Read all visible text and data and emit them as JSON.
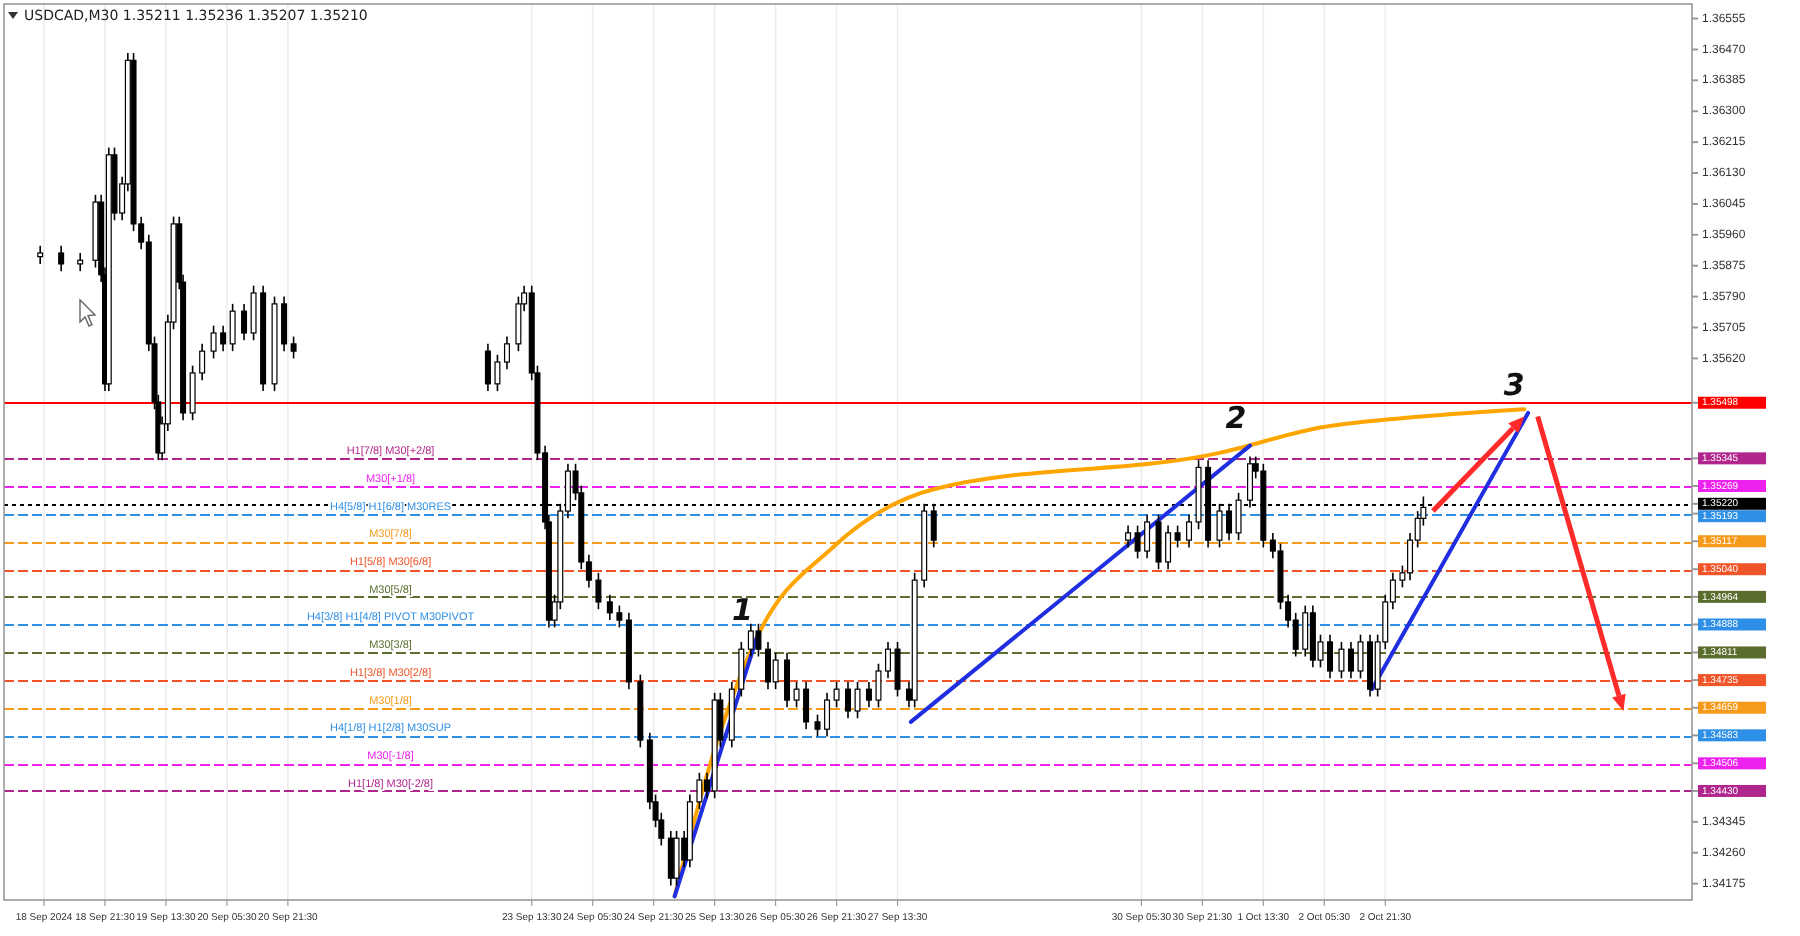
{
  "chart_data": {
    "type": "candlestick",
    "title": "USDCAD,M30  1.35211 1.35236 1.35207 1.35210",
    "color": "#000000",
    "grid": "x",
    "xlim": [
      "2024-09-17T19:00",
      "2024-10-06T06:00"
    ],
    "ylim": [
      1.3413,
      1.36595
    ],
    "xticks": [
      {
        "value": "2024-09-18T05:30",
        "label": "18 Sep 2024"
      },
      {
        "value": "2024-09-18T21:30",
        "label": "18 Sep 21:30"
      },
      {
        "value": "2024-09-19T13:30",
        "label": "19 Sep 13:30"
      },
      {
        "value": "2024-09-20T05:30",
        "label": "20 Sep 05:30"
      },
      {
        "value": "2024-09-20T21:30",
        "label": "20 Sep 21:30"
      },
      {
        "value": "2024-09-23T13:30",
        "label": "23 Sep 13:30"
      },
      {
        "value": "2024-09-24T05:30",
        "label": "24 Sep 05:30"
      },
      {
        "value": "2024-09-24T21:30",
        "label": "24 Sep 21:30"
      },
      {
        "value": "2024-09-25T13:30",
        "label": "25 Sep 13:30"
      },
      {
        "value": "2024-09-26T05:30",
        "label": "26 Sep 05:30"
      },
      {
        "value": "2024-09-26T21:30",
        "label": "26 Sep 21:30"
      },
      {
        "value": "2024-09-27T13:30",
        "label": "27 Sep 13:30"
      },
      {
        "value": "2024-09-30T05:30",
        "label": "30 Sep 05:30"
      },
      {
        "value": "2024-09-30T21:30",
        "label": "30 Sep 21:30"
      },
      {
        "value": "2024-10-01T13:30",
        "label": "1 Oct 13:30"
      },
      {
        "value": "2024-10-02T05:30",
        "label": "2 Oct 05:30"
      },
      {
        "value": "2024-10-02T21:30",
        "label": "2 Oct 21:30"
      }
    ],
    "yticks": [
      {
        "value": 1.36555,
        "label": "1.36555"
      },
      {
        "value": 1.3647,
        "label": "1.36470"
      },
      {
        "value": 1.36385,
        "label": "1.36385"
      },
      {
        "value": 1.363,
        "label": "1.36300"
      },
      {
        "value": 1.36215,
        "label": "1.36215"
      },
      {
        "value": 1.3613,
        "label": "1.36130"
      },
      {
        "value": 1.36045,
        "label": "1.36045"
      },
      {
        "value": 1.3596,
        "label": "1.35960"
      },
      {
        "value": 1.35875,
        "label": "1.35875"
      },
      {
        "value": 1.3579,
        "label": "1.35790"
      },
      {
        "value": 1.35705,
        "label": "1.35705"
      },
      {
        "value": 1.3562,
        "label": "1.35620"
      },
      {
        "value": 1.35498,
        "label": "1.35498"
      },
      {
        "value": 1.35345,
        "label": "1.35345"
      },
      {
        "value": 1.35269,
        "label": "1.35269"
      },
      {
        "value": 1.3522,
        "label": "1.35220"
      },
      {
        "value": 1.35193,
        "label": "1.35193"
      },
      {
        "value": 1.35117,
        "label": "1.35117"
      },
      {
        "value": 1.3504,
        "label": "1.35040"
      },
      {
        "value": 1.34964,
        "label": "1.34964"
      },
      {
        "value": 1.34888,
        "label": "1.34888"
      },
      {
        "value": 1.34811,
        "label": "1.34811"
      },
      {
        "value": 1.34735,
        "label": "1.34735"
      },
      {
        "value": 1.34659,
        "label": "1.34659"
      },
      {
        "value": 1.34583,
        "label": "1.34583"
      },
      {
        "value": 1.34506,
        "label": "1.34506"
      },
      {
        "value": 1.3443,
        "label": "1.34430"
      },
      {
        "value": 1.34345,
        "label": "1.34345"
      },
      {
        "value": 1.3426,
        "label": "1.34260"
      },
      {
        "value": 1.34175,
        "label": "1.34175"
      }
    ],
    "x": [
      "2024-09-18T04:30",
      "2024-09-18T10:00",
      "2024-09-18T15:00",
      "2024-09-18T19:00",
      "2024-09-18T20:30",
      "2024-09-18T21:30",
      "2024-09-18T22:30",
      "2024-09-19T00:00",
      "2024-09-19T02:00",
      "2024-09-19T03:30",
      "2024-09-19T05:00",
      "2024-09-19T07:00",
      "2024-09-19T09:00",
      "2024-09-19T10:30",
      "2024-09-19T11:30",
      "2024-09-19T12:30",
      "2024-09-19T14:00",
      "2024-09-19T15:30",
      "2024-09-19T17:00",
      "2024-09-19T18:00",
      "2024-09-19T20:30",
      "2024-09-19T23:00",
      "2024-09-20T02:00",
      "2024-09-20T04:30",
      "2024-09-20T07:00",
      "2024-09-20T10:00",
      "2024-09-20T12:30",
      "2024-09-20T15:00",
      "2024-09-20T18:00",
      "2024-09-20T20:30",
      "2024-09-20T23:00",
      "2024-09-23T02:00",
      "2024-09-23T04:30",
      "2024-09-23T07:00",
      "2024-09-23T10:00",
      "2024-09-23T11:30",
      "2024-09-23T13:30",
      "2024-09-23T15:00",
      "2024-09-23T17:00",
      "2024-09-23T18:00",
      "2024-09-23T19:30",
      "2024-09-23T21:00",
      "2024-09-23T23:00",
      "2024-09-24T01:00",
      "2024-09-24T02:30",
      "2024-09-24T04:30",
      "2024-09-24T07:00",
      "2024-09-24T10:00",
      "2024-09-24T12:30",
      "2024-09-24T15:00",
      "2024-09-24T18:00",
      "2024-09-24T20:30",
      "2024-09-24T22:00",
      "2024-09-24T23:30",
      "2024-09-25T02:00",
      "2024-09-25T03:30",
      "2024-09-25T05:30",
      "2024-09-25T07:00",
      "2024-09-25T09:30",
      "2024-09-25T11:30",
      "2024-09-25T13:30",
      "2024-09-25T15:00",
      "2024-09-25T18:00",
      "2024-09-25T20:30",
      "2024-09-25T23:00",
      "2024-09-26T01:00",
      "2024-09-26T03:30",
      "2024-09-26T05:30",
      "2024-09-26T08:30",
      "2024-09-26T11:00",
      "2024-09-26T13:30",
      "2024-09-26T16:30",
      "2024-09-26T19:00",
      "2024-09-26T21:30",
      "2024-09-27T00:30",
      "2024-09-27T03:00",
      "2024-09-27T06:00",
      "2024-09-27T08:30",
      "2024-09-27T11:00",
      "2024-09-27T13:30",
      "2024-09-27T16:30",
      "2024-09-27T18:00",
      "2024-09-27T20:30",
      "2024-09-27T23:00",
      "2024-09-30T02:00",
      "2024-09-30T04:30",
      "2024-09-30T07:00",
      "2024-09-30T10:00",
      "2024-09-30T12:30",
      "2024-09-30T15:00",
      "2024-09-30T18:00",
      "2024-09-30T20:30",
      "2024-09-30T23:00",
      "2024-10-01T02:00",
      "2024-10-01T04:30",
      "2024-10-01T07:00",
      "2024-10-01T10:00",
      "2024-10-01T11:30",
      "2024-10-01T13:30",
      "2024-10-01T16:00",
      "2024-10-01T18:00",
      "2024-10-01T20:00",
      "2024-10-01T22:00",
      "2024-10-02T00:30",
      "2024-10-02T02:30",
      "2024-10-02T04:30",
      "2024-10-02T07:00",
      "2024-10-02T10:00",
      "2024-10-02T12:30",
      "2024-10-02T15:00",
      "2024-10-02T17:30",
      "2024-10-02T19:30",
      "2024-10-02T21:30",
      "2024-10-02T23:30",
      "2024-10-03T02:00",
      "2024-10-03T04:00",
      "2024-10-03T06:00",
      "2024-10-03T07:30"
    ],
    "ohlc": [
      [
        1.359,
        1.3593,
        1.3588,
        1.3591
      ],
      [
        1.3591,
        1.3593,
        1.3586,
        1.3588
      ],
      [
        1.3588,
        1.3591,
        1.3586,
        1.3589
      ],
      [
        1.3589,
        1.3607,
        1.3587,
        1.3605
      ],
      [
        1.3605,
        1.3607,
        1.3583,
        1.3585
      ],
      [
        1.3585,
        1.3587,
        1.3553,
        1.3555
      ],
      [
        1.3555,
        1.362,
        1.3553,
        1.3618
      ],
      [
        1.3618,
        1.362,
        1.36,
        1.3602
      ],
      [
        1.3602,
        1.3612,
        1.36,
        1.361
      ],
      [
        1.361,
        1.3646,
        1.3608,
        1.3644
      ],
      [
        1.3644,
        1.3646,
        1.3597,
        1.3599
      ],
      [
        1.3599,
        1.3601,
        1.3592,
        1.3594
      ],
      [
        1.3594,
        1.3596,
        1.3564,
        1.3566
      ],
      [
        1.3566,
        1.3568,
        1.3548,
        1.355
      ],
      [
        1.355,
        1.3552,
        1.3534,
        1.3536
      ],
      [
        1.3536,
        1.3546,
        1.3534,
        1.3544
      ],
      [
        1.3544,
        1.3574,
        1.3542,
        1.3572
      ],
      [
        1.3572,
        1.3601,
        1.357,
        1.3599
      ],
      [
        1.3599,
        1.3601,
        1.3581,
        1.3583
      ],
      [
        1.3583,
        1.3585,
        1.3545,
        1.3547
      ],
      [
        1.3547,
        1.356,
        1.3545,
        1.3558
      ],
      [
        1.3558,
        1.3566,
        1.3556,
        1.3564
      ],
      [
        1.3564,
        1.3571,
        1.3562,
        1.3569
      ],
      [
        1.3569,
        1.3571,
        1.3564,
        1.3566
      ],
      [
        1.3566,
        1.3577,
        1.3564,
        1.3575
      ],
      [
        1.3575,
        1.3577,
        1.3567,
        1.3569
      ],
      [
        1.3569,
        1.3582,
        1.3567,
        1.358
      ],
      [
        1.358,
        1.3582,
        1.3553,
        1.3555
      ],
      [
        1.3555,
        1.3579,
        1.3553,
        1.3577
      ],
      [
        1.3577,
        1.3579,
        1.3564,
        1.3566
      ],
      [
        1.3566,
        1.3568,
        1.3562,
        1.3564
      ],
      [
        1.3564,
        1.3566,
        1.3553,
        1.3555
      ],
      [
        1.3555,
        1.3563,
        1.3553,
        1.3561
      ],
      [
        1.3561,
        1.3568,
        1.3559,
        1.3566
      ],
      [
        1.3566,
        1.3579,
        1.3564,
        1.3577
      ],
      [
        1.3577,
        1.3582,
        1.3575,
        1.358
      ],
      [
        1.358,
        1.3582,
        1.3556,
        1.3558
      ],
      [
        1.3558,
        1.356,
        1.3534,
        1.3536
      ],
      [
        1.3536,
        1.3538,
        1.3515,
        1.3517
      ],
      [
        1.3517,
        1.3519,
        1.3488,
        1.349
      ],
      [
        1.349,
        1.3497,
        1.3488,
        1.3495
      ],
      [
        1.3495,
        1.3522,
        1.3493,
        1.352
      ],
      [
        1.352,
        1.3533,
        1.3518,
        1.3531
      ],
      [
        1.3531,
        1.3533,
        1.3523,
        1.3525
      ],
      [
        1.3525,
        1.3527,
        1.3504,
        1.3506
      ],
      [
        1.3506,
        1.3508,
        1.3499,
        1.3501
      ],
      [
        1.3501,
        1.3503,
        1.3493,
        1.3495
      ],
      [
        1.3495,
        1.3497,
        1.349,
        1.3492
      ],
      [
        1.3492,
        1.3494,
        1.3488,
        1.349
      ],
      [
        1.349,
        1.3492,
        1.3471,
        1.3473
      ],
      [
        1.3473,
        1.3475,
        1.3455,
        1.3457
      ],
      [
        1.3457,
        1.3459,
        1.3438,
        1.344
      ],
      [
        1.344,
        1.3442,
        1.3433,
        1.3435
      ],
      [
        1.3435,
        1.3437,
        1.3428,
        1.343
      ],
      [
        1.343,
        1.3432,
        1.3417,
        1.3419
      ],
      [
        1.3419,
        1.3432,
        1.3417,
        1.343
      ],
      [
        1.343,
        1.3432,
        1.3422,
        1.3424
      ],
      [
        1.3424,
        1.3442,
        1.3422,
        1.344
      ],
      [
        1.344,
        1.3448,
        1.3438,
        1.3446
      ],
      [
        1.3446,
        1.3448,
        1.3441,
        1.3443
      ],
      [
        1.3443,
        1.347,
        1.3441,
        1.3468
      ],
      [
        1.3468,
        1.347,
        1.3455,
        1.3457
      ],
      [
        1.3457,
        1.3473,
        1.3455,
        1.3471
      ],
      [
        1.3471,
        1.3484,
        1.3469,
        1.3482
      ],
      [
        1.3482,
        1.3489,
        1.348,
        1.3487
      ],
      [
        1.3487,
        1.3489,
        1.348,
        1.3482
      ],
      [
        1.3482,
        1.3484,
        1.3471,
        1.3473
      ],
      [
        1.3473,
        1.3481,
        1.3471,
        1.3479
      ],
      [
        1.3479,
        1.3481,
        1.3466,
        1.3468
      ],
      [
        1.3468,
        1.3473,
        1.3466,
        1.3471
      ],
      [
        1.3471,
        1.3473,
        1.346,
        1.3462
      ],
      [
        1.3462,
        1.3464,
        1.3458,
        1.346
      ],
      [
        1.346,
        1.347,
        1.3458,
        1.3468
      ],
      [
        1.3468,
        1.3473,
        1.3466,
        1.3471
      ],
      [
        1.3471,
        1.3473,
        1.3463,
        1.3465
      ],
      [
        1.3465,
        1.3473,
        1.3463,
        1.3471
      ],
      [
        1.3471,
        1.3473,
        1.3466,
        1.3468
      ],
      [
        1.3468,
        1.3478,
        1.3466,
        1.3476
      ],
      [
        1.3476,
        1.3484,
        1.3474,
        1.3482
      ],
      [
        1.3482,
        1.3484,
        1.3469,
        1.3471
      ],
      [
        1.3471,
        1.3473,
        1.3466,
        1.3468
      ],
      [
        1.3468,
        1.3503,
        1.3466,
        1.3501
      ],
      [
        1.3501,
        1.3522,
        1.3499,
        1.352
      ],
      [
        1.352,
        1.3522,
        1.351,
        1.3512
      ],
      [
        1.3512,
        1.3516,
        1.351,
        1.3514
      ],
      [
        1.3514,
        1.3516,
        1.3507,
        1.3509
      ],
      [
        1.3509,
        1.3519,
        1.3507,
        1.3517
      ],
      [
        1.3517,
        1.3519,
        1.3504,
        1.3506
      ],
      [
        1.3506,
        1.3516,
        1.3504,
        1.3514
      ],
      [
        1.3514,
        1.3516,
        1.351,
        1.3512
      ],
      [
        1.3512,
        1.3519,
        1.351,
        1.3517
      ],
      [
        1.3517,
        1.3534,
        1.3515,
        1.3532
      ],
      [
        1.3532,
        1.3534,
        1.351,
        1.3512
      ],
      [
        1.3512,
        1.3522,
        1.351,
        1.352
      ],
      [
        1.352,
        1.3522,
        1.3512,
        1.3514
      ],
      [
        1.3514,
        1.3525,
        1.3512,
        1.3523
      ],
      [
        1.3523,
        1.3535,
        1.3521,
        1.3533
      ],
      [
        1.3533,
        1.3535,
        1.3529,
        1.3531
      ],
      [
        1.3531,
        1.3533,
        1.351,
        1.3512
      ],
      [
        1.3512,
        1.3514,
        1.3507,
        1.3509
      ],
      [
        1.3509,
        1.3511,
        1.3493,
        1.3495
      ],
      [
        1.3495,
        1.3497,
        1.3488,
        1.349
      ],
      [
        1.349,
        1.3492,
        1.348,
        1.3482
      ],
      [
        1.3482,
        1.3494,
        1.348,
        1.3492
      ],
      [
        1.3492,
        1.3494,
        1.3477,
        1.3479
      ],
      [
        1.3479,
        1.3486,
        1.3477,
        1.3484
      ],
      [
        1.3484,
        1.3486,
        1.3474,
        1.3476
      ],
      [
        1.3476,
        1.3484,
        1.3474,
        1.3482
      ],
      [
        1.3482,
        1.3484,
        1.3474,
        1.3476
      ],
      [
        1.3476,
        1.3486,
        1.3474,
        1.3484
      ],
      [
        1.3484,
        1.3486,
        1.3469,
        1.3471
      ],
      [
        1.3471,
        1.3486,
        1.3469,
        1.3484
      ],
      [
        1.3484,
        1.3497,
        1.3482,
        1.3495
      ],
      [
        1.3495,
        1.3503,
        1.3493,
        1.3501
      ],
      [
        1.3501,
        1.3505,
        1.3499,
        1.3503
      ],
      [
        1.3503,
        1.3514,
        1.3501,
        1.3512
      ],
      [
        1.3512,
        1.352,
        1.351,
        1.3518
      ],
      [
        1.3518,
        1.3524,
        1.3516,
        1.3521
      ]
    ],
    "series": [
      {
        "type": "line",
        "color": "#ffa500",
        "x": [
          "2024-09-25T03:00",
          "2024-09-25T12:30",
          "2024-09-26T00:30",
          "2024-09-26T20:30",
          "2024-09-27T23:00",
          "2024-10-01T02:00",
          "2024-10-02T04:30",
          "2024-10-03T07:00",
          "2024-10-04T10:00"
        ],
        "values": [
          1.3414,
          1.3451,
          1.3485,
          1.351,
          1.3526,
          1.3536,
          1.3543,
          1.3546,
          1.3548
        ]
      },
      {
        "type": "line",
        "color": "#1f2ee0",
        "x": [
          "2024-09-25T03:00",
          "2024-09-26T00:30"
        ],
        "values": [
          1.3414,
          1.3485
        ]
      },
      {
        "type": "line",
        "color": "#1f2ee0",
        "x": [
          "2024-09-27T17:00",
          "2024-10-01T10:00"
        ],
        "values": [
          1.3462,
          1.3538
        ]
      },
      {
        "type": "line",
        "color": "#1f2ee0",
        "x": [
          "2024-10-02T18:00",
          "2024-10-04T11:00"
        ],
        "values": [
          1.3471,
          1.3547
        ]
      }
    ],
    "annotations": [
      {
        "text": "1",
        "x": "2024-09-26T00:30",
        "y": 1.3485
      },
      {
        "text": "2",
        "x": "2024-10-01T10:00",
        "y": 1.3538
      },
      {
        "text": "3",
        "x": "2024-10-04T11:00",
        "y": 1.3547
      }
    ],
    "ref_lines": [
      {
        "axis": "y",
        "value": 1.35498,
        "label": null,
        "color": "#ff0000",
        "line_style": "solid"
      },
      {
        "axis": "y",
        "value": 1.35345,
        "label": "H1[7/8] M30[+2/8]",
        "color": "#b0268c",
        "line_style": "dashed"
      },
      {
        "axis": "y",
        "value": 1.35269,
        "label": "M30[+1/8]",
        "color": "#ee22ee",
        "line_style": "dashed"
      },
      {
        "axis": "y",
        "value": 1.3522,
        "label": null,
        "color": "#000000",
        "line_style": "dotted"
      },
      {
        "axis": "y",
        "value": 1.35193,
        "label": "H4[5/8] H1[6/8] M30RES",
        "color": "#2e8fe6",
        "line_style": "dashed"
      },
      {
        "axis": "y",
        "value": 1.35117,
        "label": "M30[7/8]",
        "color": "#f59a1a",
        "line_style": "dashed"
      },
      {
        "axis": "y",
        "value": 1.3504,
        "label": "H1[5/8] M30[6/8]",
        "color": "#f0552a",
        "line_style": "dashed"
      },
      {
        "axis": "y",
        "value": 1.34964,
        "label": "M30[5/8]",
        "color": "#5b6e2f",
        "line_style": "dashed"
      },
      {
        "axis": "y",
        "value": 1.34888,
        "label": "H4[3/8] H1[4/8] PIVOT M30PIVOT",
        "color": "#2e8fe6",
        "line_style": "dashed"
      },
      {
        "axis": "y",
        "value": 1.34811,
        "label": "M30[3/8]",
        "color": "#5b6e2f",
        "line_style": "dashed"
      },
      {
        "axis": "y",
        "value": 1.34735,
        "label": "H1[3/8] M30[2/8]",
        "color": "#f0552a",
        "line_style": "dashed"
      },
      {
        "axis": "y",
        "value": 1.34659,
        "label": "M30[1/8]",
        "color": "#f59a1a",
        "line_style": "dashed"
      },
      {
        "axis": "y",
        "value": 1.34583,
        "label": "H4[1/8] H1[2/8] M30SUP",
        "color": "#2e8fe6",
        "line_style": "dashed"
      },
      {
        "axis": "y",
        "value": 1.34506,
        "label": "M30[-1/8]",
        "color": "#ee22ee",
        "line_style": "dashed"
      },
      {
        "axis": "y",
        "value": 1.3443,
        "label": "H1[1/8] M30[-2/8]",
        "color": "#b0268c",
        "line_style": "dashed"
      }
    ]
  }
}
